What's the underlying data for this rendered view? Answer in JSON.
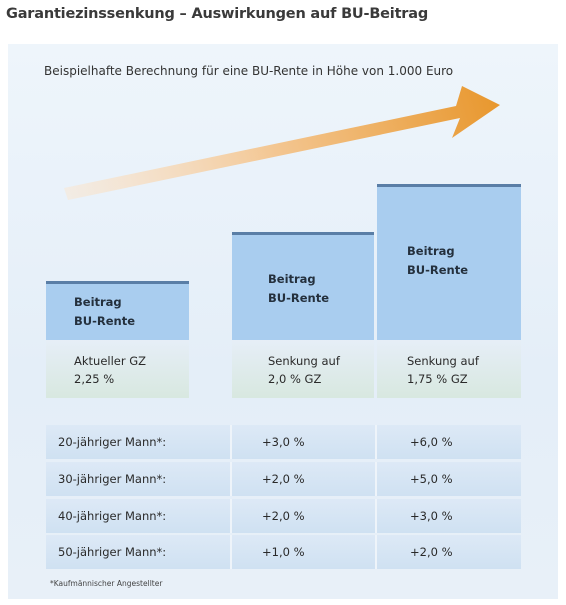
{
  "title": "Garantiezinssenkung – Auswirkungen auf BU-Beitrag",
  "subtitle": "Beispielhafte Berechnung für eine BU-Rente in Höhe von 1.000 Euro",
  "colors": {
    "bar_fill": "#a9cdef",
    "bar_top_line": "#5a7ea6",
    "arrow_orange": "#e8972d",
    "panel_bg": "#e8f1f9",
    "row_bg": "#d5e5f4"
  },
  "columns": [
    {
      "line1": "Beitrag",
      "line2": "BU-Rente",
      "cond1": "Aktueller GZ",
      "cond2": "2,25 %"
    },
    {
      "line1": "Beitrag",
      "line2": "BU-Rente",
      "cond1": "Senkung auf",
      "cond2": "2,0 % GZ"
    },
    {
      "line1": "Beitrag",
      "line2": "BU-Rente",
      "cond1": "Senkung auf",
      "cond2": "1,75 % GZ"
    }
  ],
  "table": {
    "rows": [
      {
        "label": "20-jähriger Mann*:",
        "v1": "+3,0 %",
        "v2": "+6,0 %"
      },
      {
        "label": "30-jähriger Mann*:",
        "v1": "+2,0 %",
        "v2": "+5,0 %"
      },
      {
        "label": "40-jähriger Mann*:",
        "v1": "+2,0 %",
        "v2": "+3,0 %"
      },
      {
        "label": "50-jähriger Mann*:",
        "v1": "+1,0 %",
        "v2": "+2,0 %"
      }
    ]
  },
  "footnote": "*Kaufmännischer Angestellter",
  "chart_data": {
    "type": "table",
    "title": "Garantiezinssenkung – Auswirkungen auf BU-Beitrag",
    "subtitle": "Beispielhafte Berechnung für eine BU-Rente in Höhe von 1.000 Euro",
    "categories": [
      "Aktueller GZ 2,25 %",
      "Senkung auf 2,0 % GZ",
      "Senkung auf 1,75 % GZ"
    ],
    "series": [
      {
        "name": "20-jähriger Mann*",
        "values": [
          0,
          3.0,
          6.0
        ]
      },
      {
        "name": "30-jähriger Mann*",
        "values": [
          0,
          2.0,
          5.0
        ]
      },
      {
        "name": "40-jähriger Mann*",
        "values": [
          0,
          2.0,
          3.0
        ]
      },
      {
        "name": "50-jähriger Mann*",
        "values": [
          0,
          1.0,
          2.0
        ]
      }
    ]
  }
}
